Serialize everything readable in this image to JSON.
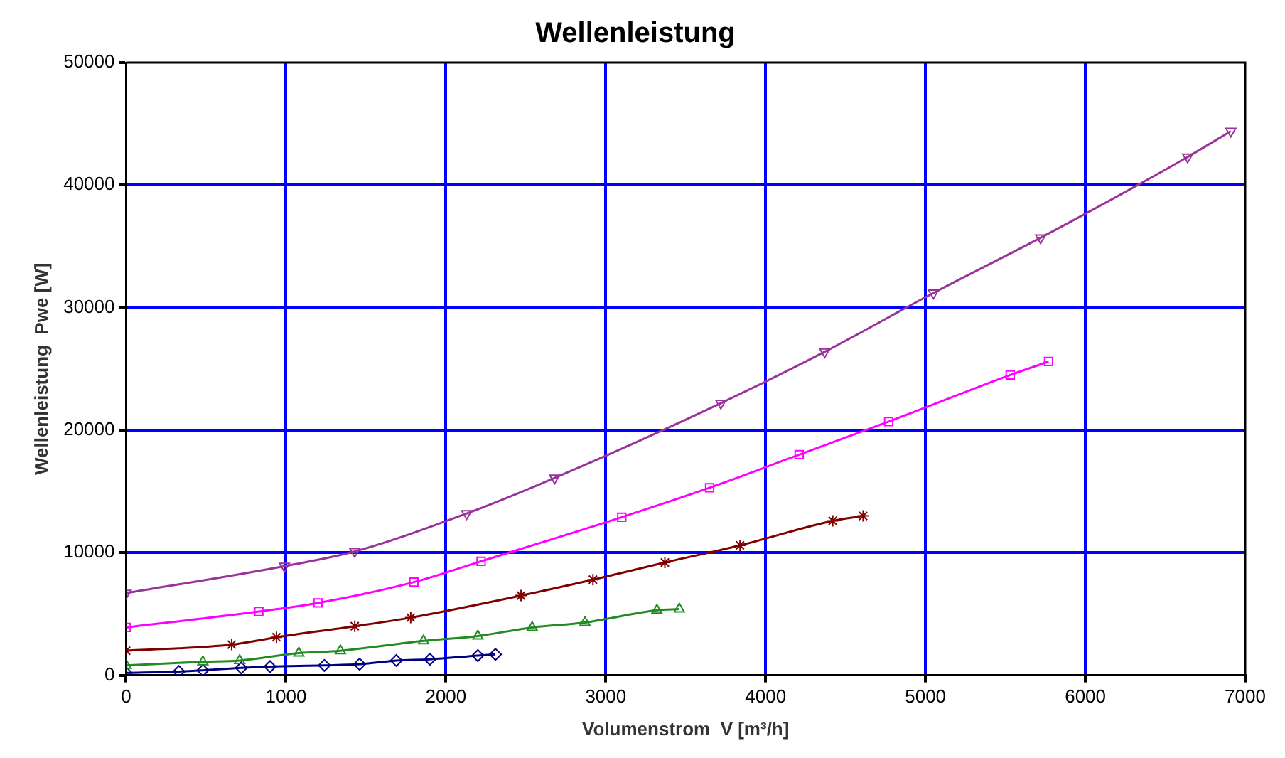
{
  "chart_data": {
    "type": "line",
    "title": "Wellenleistung",
    "xlabel": "Volumenstrom  V [m³/h]",
    "ylabel": "Wellenleistung  Pwe [W]",
    "xlim": [
      0,
      7000
    ],
    "xticks": [
      0,
      1000,
      2000,
      3000,
      4000,
      5000,
      6000,
      7000
    ],
    "ylim": [
      0,
      50000
    ],
    "yticks": [
      0,
      10000,
      20000,
      30000,
      40000,
      50000
    ],
    "grid": true,
    "legend": false,
    "line_style": "solid",
    "series": [
      {
        "color": "#993399",
        "marker": "triangle-down",
        "x": [
          0,
          990,
          1430,
          2130,
          2680,
          3720,
          4370,
          5050,
          5720,
          6640,
          6910
        ],
        "values": [
          6700,
          8900,
          10100,
          13200,
          16100,
          22200,
          26400,
          31200,
          35700,
          42300,
          44400
        ]
      },
      {
        "color": "#ff00ff",
        "marker": "square",
        "x": [
          0,
          830,
          1200,
          1800,
          2220,
          3100,
          3650,
          4210,
          4770,
          5530,
          5770
        ],
        "values": [
          3900,
          5200,
          5900,
          7600,
          9300,
          12900,
          15300,
          18000,
          20700,
          24500,
          25600
        ]
      },
      {
        "color": "#800000",
        "marker": "cross",
        "x": [
          0,
          660,
          940,
          1430,
          1780,
          2470,
          2920,
          3370,
          3840,
          4420,
          4610
        ],
        "values": [
          2000,
          2500,
          3100,
          4000,
          4700,
          6500,
          7800,
          9200,
          10600,
          12600,
          13000
        ]
      },
      {
        "color": "#228b22",
        "marker": "triangle",
        "x": [
          0,
          480,
          710,
          1080,
          1340,
          1860,
          2200,
          2540,
          2870,
          3320,
          3460
        ],
        "values": [
          800,
          1100,
          1200,
          1800,
          2000,
          2800,
          3200,
          3900,
          4300,
          5300,
          5400
        ]
      },
      {
        "color": "#000080",
        "marker": "diamond",
        "x": [
          0,
          330,
          480,
          720,
          900,
          1240,
          1460,
          1690,
          1900,
          2200,
          2310
        ],
        "values": [
          200,
          300,
          400,
          600,
          700,
          800,
          900,
          1200,
          1300,
          1600,
          1700
        ]
      }
    ]
  }
}
